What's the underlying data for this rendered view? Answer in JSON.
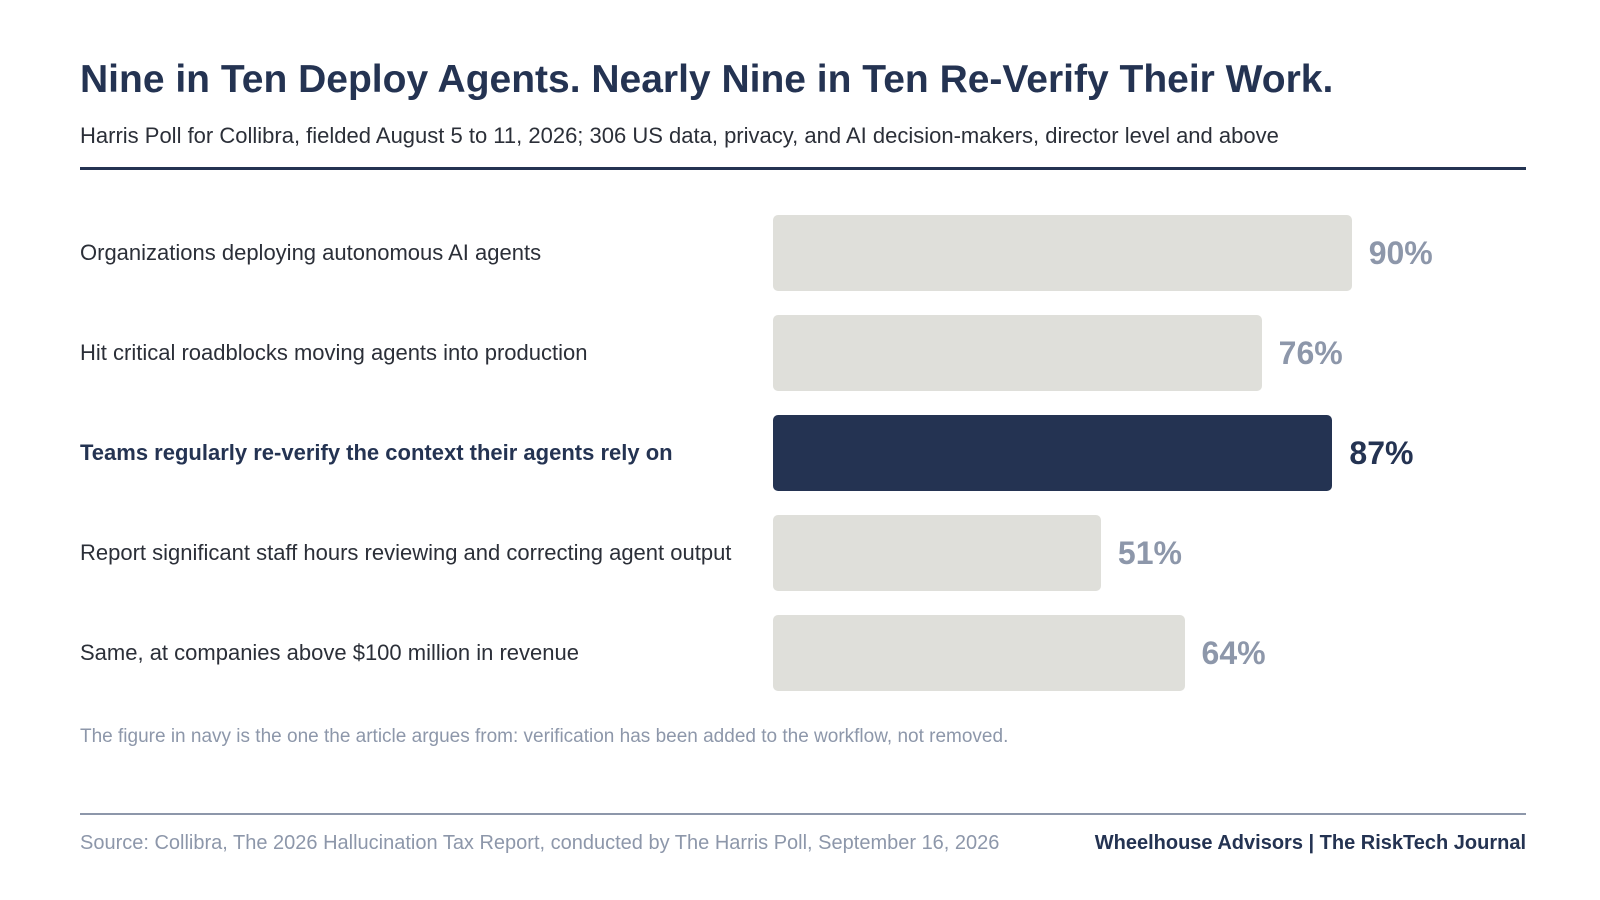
{
  "header": {
    "title": "Nine in Ten Deploy Agents. Nearly Nine in Ten Re-Verify Their Work.",
    "subtitle": "Harris Poll for Collibra, fielded August 5 to 11, 2026; 306 US data, privacy, and AI decision-makers, director level and above"
  },
  "chart_data": {
    "type": "bar",
    "orientation": "horizontal",
    "categories": [
      "Organizations deploying autonomous AI agents",
      "Hit critical roadblocks moving agents into production",
      "Teams regularly re-verify the context their agents rely on",
      "Report significant staff hours reviewing and correcting agent output",
      "Same, at companies above $100 million in revenue"
    ],
    "values": [
      90,
      76,
      87,
      51,
      64
    ],
    "value_labels": [
      "90%",
      "76%",
      "87%",
      "51%",
      "64%"
    ],
    "highlight_index": 2,
    "xlim": [
      0,
      100
    ],
    "grid": false,
    "colors": {
      "default": "#dfdfda",
      "highlight": "#243352",
      "label_default": "#8d97aa",
      "label_highlight": "#243352"
    }
  },
  "footnote": "The figure in navy is the one the article argues from: verification has been added to the workflow, not removed.",
  "footer": {
    "source": "Source: Collibra, The 2026 Hallucination Tax Report, conducted by The Harris Poll, September 16, 2026",
    "brand": "Wheelhouse Advisors | The RiskTech Journal"
  }
}
